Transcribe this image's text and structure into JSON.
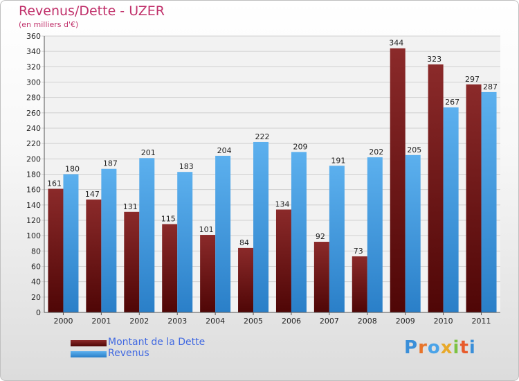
{
  "chart_data": {
    "type": "bar",
    "title": "Revenus/Dette - UZER",
    "subtitle": "(en milliers d'€)",
    "categories": [
      "2000",
      "2001",
      "2002",
      "2003",
      "2004",
      "2005",
      "2006",
      "2007",
      "2008",
      "2009",
      "2010",
      "2011"
    ],
    "series": [
      {
        "name": "Montant de la Dette",
        "color": "#7a1a1a",
        "values": [
          161,
          147,
          131,
          115,
          101,
          84,
          134,
          92,
          73,
          344,
          323,
          297
        ]
      },
      {
        "name": "Revenus",
        "color": "#4aa3e8",
        "values": [
          180,
          187,
          201,
          183,
          204,
          222,
          209,
          191,
          202,
          205,
          267,
          287
        ]
      }
    ],
    "ylim": [
      0,
      360
    ],
    "ytick_step": 20,
    "grid": true,
    "legend_position": "bottom-left"
  },
  "logo": {
    "text": "Proxiti"
  }
}
